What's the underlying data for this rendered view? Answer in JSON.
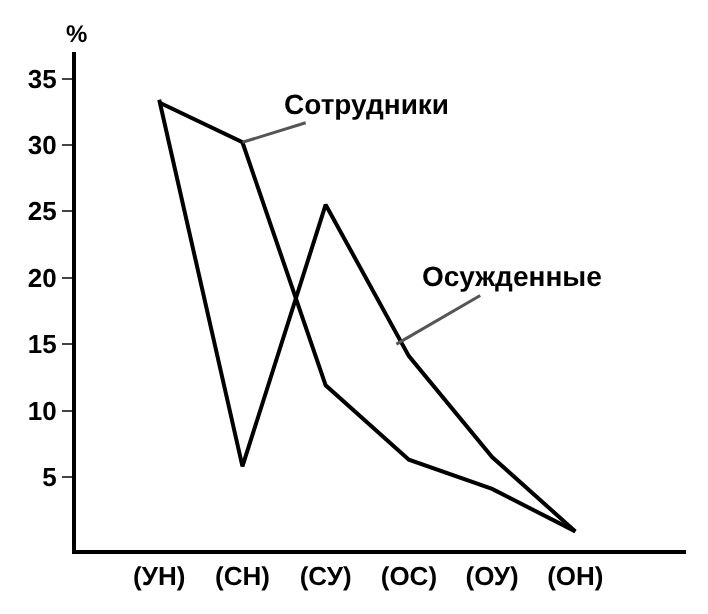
{
  "chart_data": {
    "type": "line",
    "ylabel": "%",
    "categories": [
      "(УН)",
      "(СН)",
      "(СУ)",
      "(ОС)",
      "(ОУ)",
      "(ОН)"
    ],
    "series": [
      {
        "name": "Сотрудники",
        "color": "#000000",
        "values": [
          33.2,
          30.2,
          11.9,
          6.3,
          4.1,
          0.9
        ]
      },
      {
        "name": "Осужденные",
        "color": "#000000",
        "values": [
          33.4,
          5.8,
          25.5,
          14.1,
          6.5,
          0.9
        ]
      }
    ],
    "ylim": [
      -0.5,
      37
    ],
    "yticks": [
      5,
      10,
      15,
      20,
      25,
      30,
      35
    ],
    "legend": false,
    "marker": "none",
    "line_style": "solid"
  }
}
